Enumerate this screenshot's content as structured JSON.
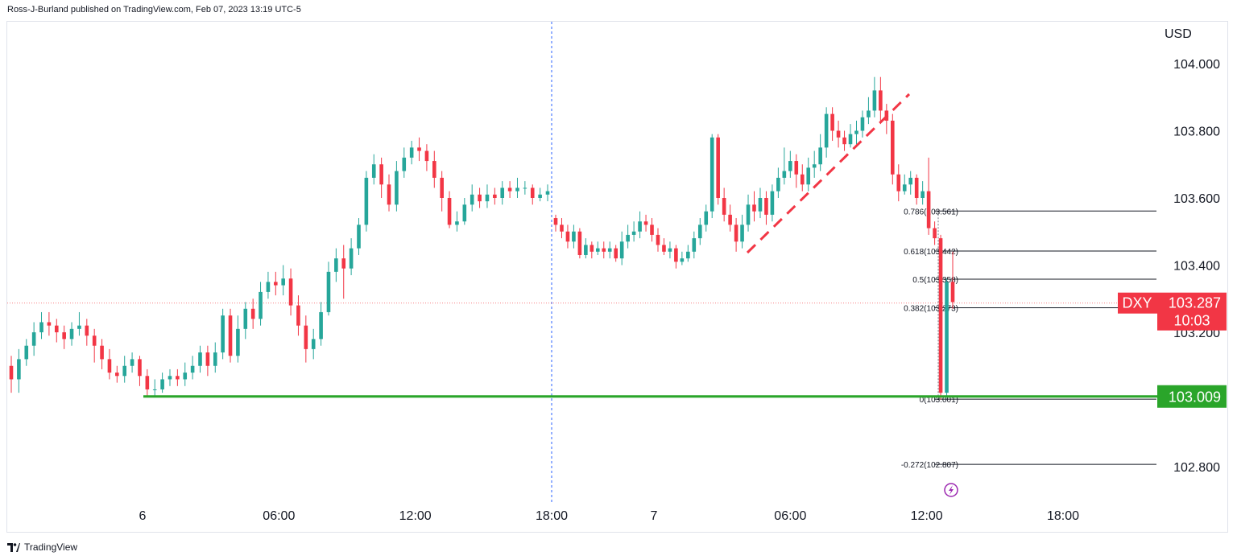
{
  "header": {
    "text": "Ross-J-Burland published on TradingView.com, Feb 07, 2023 13:19 UTC-5"
  },
  "footer": {
    "brand": "TradingView"
  },
  "colors": {
    "up": "#26a69a",
    "down": "#f23645",
    "support": "#2aa52a",
    "dashed_trend": "#f23645",
    "fib": "#131722",
    "current_price_line": "#f77c80",
    "separator": "#2962ff"
  },
  "chart_data": {
    "type": "candlestick",
    "symbol": "DXY",
    "currency": "USD",
    "x_ticks": [
      {
        "label": "6",
        "t": 0
      },
      {
        "label": "06:00",
        "t": 6
      },
      {
        "label": "12:00",
        "t": 12
      },
      {
        "label": "18:00",
        "t": 18
      },
      {
        "label": "7",
        "t": 22.5
      },
      {
        "label": "06:00",
        "t": 28.5
      },
      {
        "label": "12:00",
        "t": 34.5
      },
      {
        "label": "18:00",
        "t": 40.5
      }
    ],
    "y_ticks": [
      "104.000",
      "103.800",
      "103.600",
      "103.400",
      "103.200",
      "102.800"
    ],
    "ylim": [
      102.68,
      104.1
    ],
    "current": {
      "symbol": "DXY",
      "price": "103.287",
      "countdown": "10:03"
    },
    "support_level": {
      "label": "103.009",
      "value": 103.009
    },
    "fibonacci": [
      {
        "label": "0.786(103.561)",
        "value": 103.561
      },
      {
        "label": "0.618(103.442)",
        "value": 103.442
      },
      {
        "label": "0.5(103.358)",
        "value": 103.358
      },
      {
        "label": "0.382(103.273)",
        "value": 103.273
      },
      {
        "label": "0(103.001)",
        "value": 103.001
      },
      {
        "label": "-0.272(102.807)",
        "value": 102.807
      }
    ],
    "candles": [
      [
        103.1,
        103.06,
        103.13,
        103.02
      ],
      [
        103.06,
        103.12,
        103.15,
        103.02
      ],
      [
        103.12,
        103.16,
        103.18,
        103.1
      ],
      [
        103.16,
        103.2,
        103.23,
        103.13
      ],
      [
        103.2,
        103.23,
        103.26,
        103.18
      ],
      [
        103.23,
        103.22,
        103.26,
        103.19
      ],
      [
        103.22,
        103.2,
        103.24,
        103.17
      ],
      [
        103.2,
        103.18,
        103.22,
        103.15
      ],
      [
        103.18,
        103.21,
        103.23,
        103.16
      ],
      [
        103.21,
        103.22,
        103.26,
        103.19
      ],
      [
        103.22,
        103.19,
        103.24,
        103.16
      ],
      [
        103.19,
        103.16,
        103.21,
        103.11
      ],
      [
        103.16,
        103.12,
        103.18,
        103.09
      ],
      [
        103.12,
        103.08,
        103.15,
        103.06
      ],
      [
        103.08,
        103.07,
        103.1,
        103.05
      ],
      [
        103.07,
        103.1,
        103.13,
        103.05
      ],
      [
        103.1,
        103.12,
        103.14,
        103.08
      ],
      [
        103.12,
        103.07,
        103.13,
        103.04
      ],
      [
        103.07,
        103.03,
        103.09,
        103.01
      ],
      [
        103.03,
        103.03,
        103.06,
        103.01
      ],
      [
        103.03,
        103.06,
        103.08,
        103.02
      ],
      [
        103.06,
        103.07,
        103.09,
        103.04
      ],
      [
        103.07,
        103.06,
        103.09,
        103.04
      ],
      [
        103.06,
        103.08,
        103.11,
        103.04
      ],
      [
        103.08,
        103.1,
        103.13,
        103.06
      ],
      [
        103.1,
        103.14,
        103.16,
        103.08
      ],
      [
        103.14,
        103.1,
        103.16,
        103.07
      ],
      [
        103.1,
        103.14,
        103.17,
        103.08
      ],
      [
        103.14,
        103.25,
        103.27,
        103.12
      ],
      [
        103.25,
        103.13,
        103.27,
        103.11
      ],
      [
        103.13,
        103.21,
        103.25,
        103.11
      ],
      [
        103.21,
        103.27,
        103.29,
        103.18
      ],
      [
        103.27,
        103.24,
        103.3,
        103.21
      ],
      [
        103.24,
        103.32,
        103.35,
        103.22
      ],
      [
        103.32,
        103.35,
        103.38,
        103.3
      ],
      [
        103.35,
        103.34,
        103.38,
        103.31
      ],
      [
        103.34,
        103.36,
        103.4,
        103.31
      ],
      [
        103.36,
        103.28,
        103.39,
        103.25
      ],
      [
        103.28,
        103.22,
        103.31,
        103.19
      ],
      [
        103.22,
        103.15,
        103.25,
        103.11
      ],
      [
        103.15,
        103.18,
        103.21,
        103.12
      ],
      [
        103.18,
        103.26,
        103.29,
        103.16
      ],
      [
        103.26,
        103.38,
        103.41,
        103.25
      ],
      [
        103.38,
        103.42,
        103.45,
        103.35
      ],
      [
        103.42,
        103.39,
        103.46,
        103.3
      ],
      [
        103.39,
        103.45,
        103.48,
        103.37
      ],
      [
        103.45,
        103.52,
        103.54,
        103.43
      ],
      [
        103.52,
        103.66,
        103.68,
        103.5
      ],
      [
        103.66,
        103.7,
        103.73,
        103.64
      ],
      [
        103.7,
        103.64,
        103.72,
        103.6
      ],
      [
        103.64,
        103.58,
        103.67,
        103.56
      ],
      [
        103.58,
        103.68,
        103.71,
        103.56
      ],
      [
        103.68,
        103.72,
        103.75,
        103.66
      ],
      [
        103.72,
        103.75,
        103.77,
        103.7
      ],
      [
        103.75,
        103.74,
        103.78,
        103.71
      ],
      [
        103.74,
        103.71,
        103.76,
        103.68
      ],
      [
        103.71,
        103.66,
        103.74,
        103.63
      ],
      [
        103.66,
        103.6,
        103.68,
        103.56
      ],
      [
        103.6,
        103.52,
        103.62,
        103.51
      ],
      [
        103.52,
        103.53,
        103.56,
        103.5
      ],
      [
        103.53,
        103.58,
        103.6,
        103.52
      ],
      [
        103.58,
        103.61,
        103.64,
        103.56
      ],
      [
        103.61,
        103.59,
        103.63,
        103.57
      ],
      [
        103.59,
        103.61,
        103.64,
        103.57
      ],
      [
        103.61,
        103.6,
        103.63,
        103.58
      ],
      [
        103.6,
        103.63,
        103.65,
        103.58
      ],
      [
        103.63,
        103.62,
        103.65,
        103.6
      ],
      [
        103.62,
        103.63,
        103.66,
        103.6
      ],
      [
        103.63,
        103.63,
        103.65,
        103.61
      ],
      [
        103.63,
        103.6,
        103.64,
        103.58
      ],
      [
        103.6,
        103.61,
        103.63,
        103.59
      ],
      [
        103.61,
        103.62,
        103.64,
        103.59
      ],
      [
        103.54,
        103.52,
        103.55,
        103.5
      ],
      [
        103.52,
        103.5,
        103.54,
        103.48
      ],
      [
        103.5,
        103.47,
        103.52,
        103.45
      ],
      [
        103.47,
        103.5,
        103.52,
        103.45
      ],
      [
        103.5,
        103.43,
        103.51,
        103.42
      ],
      [
        103.43,
        103.46,
        103.48,
        103.42
      ],
      [
        103.46,
        103.44,
        103.47,
        103.42
      ],
      [
        103.44,
        103.45,
        103.47,
        103.43
      ],
      [
        103.45,
        103.44,
        103.47,
        103.42
      ],
      [
        103.44,
        103.45,
        103.47,
        103.42
      ],
      [
        103.45,
        103.42,
        103.46,
        103.41
      ],
      [
        103.42,
        103.47,
        103.5,
        103.4
      ],
      [
        103.47,
        103.49,
        103.52,
        103.45
      ],
      [
        103.49,
        103.5,
        103.53,
        103.47
      ],
      [
        103.5,
        103.53,
        103.56,
        103.48
      ],
      [
        103.53,
        103.52,
        103.55,
        103.5
      ],
      [
        103.52,
        103.49,
        103.54,
        103.47
      ],
      [
        103.49,
        103.46,
        103.51,
        103.44
      ],
      [
        103.46,
        103.44,
        103.48,
        103.43
      ],
      [
        103.44,
        103.45,
        103.47,
        103.42
      ],
      [
        103.45,
        103.41,
        103.46,
        103.39
      ],
      [
        103.41,
        103.42,
        103.44,
        103.4
      ],
      [
        103.42,
        103.44,
        103.46,
        103.41
      ],
      [
        103.44,
        103.48,
        103.5,
        103.42
      ],
      [
        103.48,
        103.52,
        103.54,
        103.46
      ],
      [
        103.52,
        103.56,
        103.58,
        103.5
      ],
      [
        103.56,
        103.78,
        103.79,
        103.54
      ],
      [
        103.78,
        103.6,
        103.79,
        103.58
      ],
      [
        103.6,
        103.55,
        103.63,
        103.53
      ],
      [
        103.55,
        103.52,
        103.58,
        103.5
      ],
      [
        103.52,
        103.47,
        103.54,
        103.44
      ],
      [
        103.47,
        103.52,
        103.55,
        103.45
      ],
      [
        103.52,
        103.58,
        103.61,
        103.5
      ],
      [
        103.58,
        103.56,
        103.62,
        103.53
      ],
      [
        103.56,
        103.6,
        103.63,
        103.54
      ],
      [
        103.6,
        103.55,
        103.62,
        103.52
      ],
      [
        103.55,
        103.62,
        103.64,
        103.53
      ],
      [
        103.62,
        103.66,
        103.69,
        103.6
      ],
      [
        103.66,
        103.68,
        103.75,
        103.64
      ],
      [
        103.68,
        103.71,
        103.74,
        103.66
      ],
      [
        103.71,
        103.67,
        103.73,
        103.63
      ],
      [
        103.67,
        103.64,
        103.7,
        103.62
      ],
      [
        103.64,
        103.69,
        103.72,
        103.62
      ],
      [
        103.69,
        103.7,
        103.74,
        103.66
      ],
      [
        103.7,
        103.75,
        103.79,
        103.68
      ],
      [
        103.75,
        103.85,
        103.87,
        103.72
      ],
      [
        103.85,
        103.8,
        103.87,
        103.77
      ],
      [
        103.8,
        103.78,
        103.83,
        103.75
      ],
      [
        103.78,
        103.76,
        103.8,
        103.74
      ],
      [
        103.76,
        103.79,
        103.82,
        103.75
      ],
      [
        103.79,
        103.8,
        103.83,
        103.76
      ],
      [
        103.8,
        103.84,
        103.86,
        103.78
      ],
      [
        103.84,
        103.86,
        103.9,
        103.82
      ],
      [
        103.86,
        103.92,
        103.96,
        103.84
      ],
      [
        103.92,
        103.86,
        103.96,
        103.82
      ],
      [
        103.86,
        103.83,
        103.88,
        103.79
      ],
      [
        103.83,
        103.67,
        103.85,
        103.64
      ],
      [
        103.67,
        103.62,
        103.7,
        103.59
      ],
      [
        103.62,
        103.64,
        103.67,
        103.61
      ],
      [
        103.64,
        103.66,
        103.68,
        103.61
      ],
      [
        103.66,
        103.6,
        103.67,
        103.58
      ],
      [
        103.6,
        103.62,
        103.65,
        103.58
      ],
      [
        103.62,
        103.51,
        103.72,
        103.49
      ],
      [
        103.51,
        103.48,
        103.53,
        103.46
      ],
      [
        103.48,
        103.02,
        103.49,
        103.0
      ],
      [
        103.02,
        103.35,
        103.36,
        103.01
      ],
      [
        103.35,
        103.29,
        103.44,
        103.27
      ]
    ]
  }
}
